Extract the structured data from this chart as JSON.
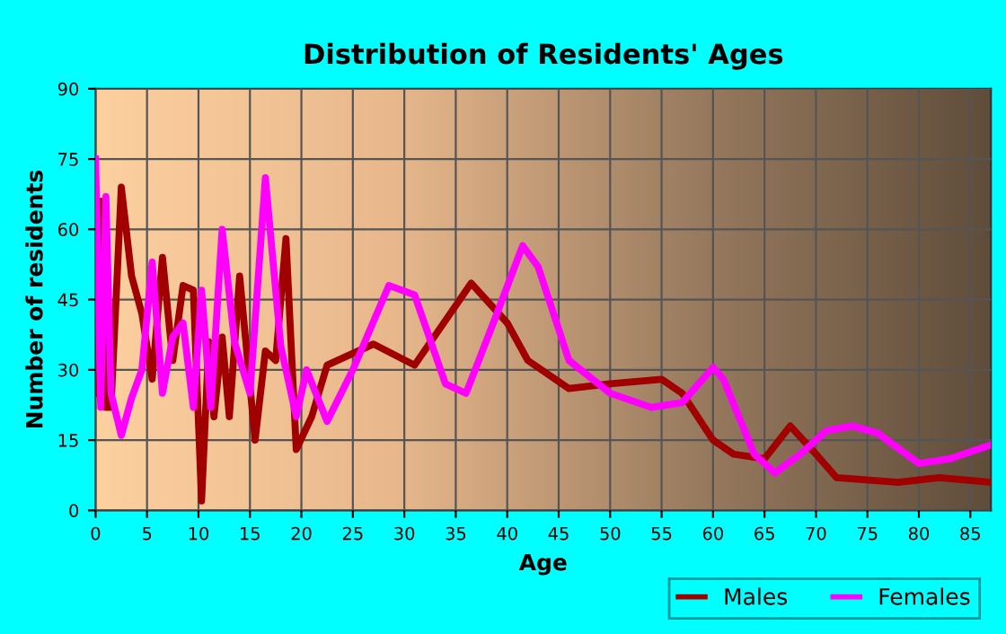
{
  "chart_data": {
    "type": "line",
    "title": "Distribution of Residents' Ages",
    "xlabel": "Age",
    "ylabel": "Number of residents",
    "xlim": [
      0,
      87
    ],
    "xticks": [
      0,
      5,
      10,
      15,
      20,
      25,
      30,
      35,
      40,
      45,
      50,
      55,
      60,
      65,
      70,
      75,
      80,
      85
    ],
    "ylim": [
      0,
      90
    ],
    "yticks": [
      0,
      15,
      30,
      45,
      60,
      75,
      90
    ],
    "grid": true,
    "legend": "bottom right",
    "line_style": "solid",
    "series": [
      {
        "name": "Males",
        "color": "#a00000",
        "x": [
          0,
          0.5,
          1,
          1.5,
          2.5,
          3.5,
          4.5,
          5.5,
          6.5,
          7.5,
          8.5,
          9.5,
          10.3,
          11,
          11.5,
          12.3,
          13,
          14,
          15.5,
          16.5,
          17.5,
          18.5,
          19.5,
          21,
          22.5,
          27,
          31,
          36.5,
          40,
          42,
          46,
          50,
          55,
          57,
          60,
          62,
          65,
          67.5,
          70,
          72,
          78,
          82,
          87
        ],
        "values": [
          25,
          66,
          22,
          22,
          69,
          50,
          42,
          28,
          54,
          32,
          48,
          47,
          2,
          36,
          20,
          37,
          20,
          50,
          15,
          34,
          32,
          58,
          13,
          20,
          31,
          35.5,
          31,
          48.5,
          40,
          32,
          26,
          27,
          28,
          25,
          15,
          12,
          11,
          18,
          12,
          7,
          6,
          7,
          6
        ]
      },
      {
        "name": "Females",
        "color": "#ff00ff",
        "x": [
          0,
          0.5,
          1,
          1.5,
          2.5,
          3.5,
          4.5,
          5.5,
          6.5,
          7.5,
          8.5,
          9.5,
          10.3,
          11.2,
          12.3,
          13.5,
          15,
          16.5,
          18,
          19.5,
          20.5,
          22.5,
          25,
          28.5,
          31,
          34,
          36,
          39,
          41.5,
          43,
          46,
          50,
          54,
          57,
          60,
          61,
          64,
          66,
          68.5,
          71,
          73.5,
          76,
          80,
          83,
          87
        ],
        "values": [
          75,
          22,
          67,
          25,
          16,
          24,
          30,
          53,
          25,
          37,
          40,
          22,
          47,
          22,
          60,
          36,
          25,
          71,
          35,
          20,
          30,
          19,
          30,
          48,
          46,
          27,
          25,
          42,
          56.5,
          52,
          32,
          25,
          22,
          23,
          30.5,
          28,
          12,
          8,
          12,
          17,
          18,
          16.5,
          10,
          11,
          14
        ]
      }
    ]
  }
}
